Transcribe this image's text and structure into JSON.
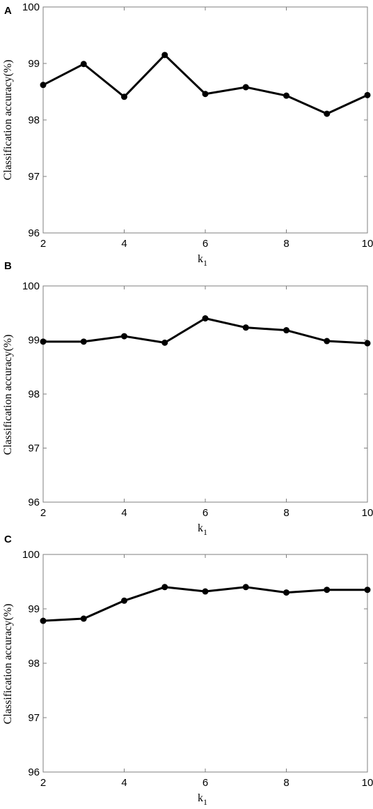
{
  "chart_data": [
    {
      "panel": "A",
      "type": "line",
      "ylabel": "Classification accuracy(%)",
      "xlabel": "k",
      "xlabel_sub": "1",
      "xlim": [
        2,
        10
      ],
      "ylim": [
        96,
        100
      ],
      "xticks": [
        2,
        4,
        6,
        8,
        10
      ],
      "yticks": [
        96,
        97,
        98,
        99,
        100
      ],
      "grid": false,
      "series": [
        {
          "x": [
            2,
            3,
            4,
            5,
            6,
            7,
            8,
            9,
            10
          ],
          "y": [
            98.62,
            98.99,
            98.41,
            99.15,
            98.46,
            98.58,
            98.43,
            98.11,
            98.44
          ]
        }
      ]
    },
    {
      "panel": "B",
      "type": "line",
      "ylabel": "Classification accuracy(%)",
      "xlabel": "k",
      "xlabel_sub": "1",
      "xlim": [
        2,
        10
      ],
      "ylim": [
        96,
        100
      ],
      "xticks": [
        2,
        4,
        6,
        8,
        10
      ],
      "yticks": [
        96,
        97,
        98,
        99,
        100
      ],
      "grid": false,
      "series": [
        {
          "x": [
            2,
            3,
            4,
            5,
            6,
            7,
            8,
            9,
            10
          ],
          "y": [
            98.97,
            98.97,
            99.07,
            98.95,
            99.4,
            99.23,
            99.18,
            98.98,
            98.94
          ]
        }
      ]
    },
    {
      "panel": "C",
      "type": "line",
      "ylabel": "Classification accuracy(%)",
      "xlabel": "k",
      "xlabel_sub": "1",
      "xlim": [
        2,
        10
      ],
      "ylim": [
        96,
        100
      ],
      "xticks": [
        2,
        4,
        6,
        8,
        10
      ],
      "yticks": [
        96,
        97,
        98,
        99,
        100
      ],
      "grid": false,
      "series": [
        {
          "x": [
            2,
            3,
            4,
            5,
            6,
            7,
            8,
            9,
            10
          ],
          "y": [
            98.78,
            98.82,
            99.15,
            99.4,
            99.32,
            99.4,
            99.3,
            99.35,
            99.35
          ]
        }
      ]
    }
  ]
}
